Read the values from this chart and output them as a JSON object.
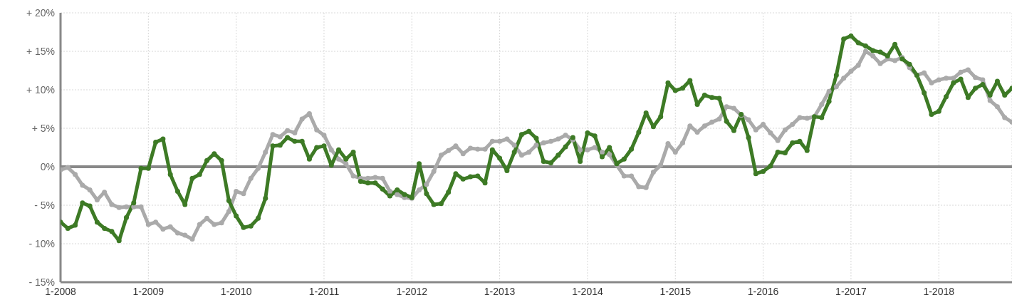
{
  "chart_data": {
    "type": "line",
    "x": [
      "2008-01",
      "2008-02",
      "2008-03",
      "2008-04",
      "2008-05",
      "2008-06",
      "2008-07",
      "2008-08",
      "2008-09",
      "2008-10",
      "2008-11",
      "2008-12",
      "2009-01",
      "2009-02",
      "2009-03",
      "2009-04",
      "2009-05",
      "2009-06",
      "2009-07",
      "2009-08",
      "2009-09",
      "2009-10",
      "2009-11",
      "2009-12",
      "2010-01",
      "2010-02",
      "2010-03",
      "2010-04",
      "2010-05",
      "2010-06",
      "2010-07",
      "2010-08",
      "2010-09",
      "2010-10",
      "2010-11",
      "2010-12",
      "2011-01",
      "2011-02",
      "2011-03",
      "2011-04",
      "2011-05",
      "2011-06",
      "2011-07",
      "2011-08",
      "2011-09",
      "2011-10",
      "2011-11",
      "2011-12",
      "2012-01",
      "2012-02",
      "2012-03",
      "2012-04",
      "2012-05",
      "2012-06",
      "2012-07",
      "2012-08",
      "2012-09",
      "2012-10",
      "2012-11",
      "2012-12",
      "2013-01",
      "2013-02",
      "2013-03",
      "2013-04",
      "2013-05",
      "2013-06",
      "2013-07",
      "2013-08",
      "2013-09",
      "2013-10",
      "2013-11",
      "2013-12",
      "2014-01",
      "2014-02",
      "2014-03",
      "2014-04",
      "2014-05",
      "2014-06",
      "2014-07",
      "2014-08",
      "2014-09",
      "2014-10",
      "2014-11",
      "2014-12",
      "2015-01",
      "2015-02",
      "2015-03",
      "2015-04",
      "2015-05",
      "2015-06",
      "2015-07",
      "2015-08",
      "2015-09",
      "2015-10",
      "2015-11",
      "2015-12",
      "2016-01",
      "2016-02",
      "2016-03",
      "2016-04",
      "2016-05",
      "2016-06",
      "2016-07",
      "2016-08",
      "2016-09",
      "2016-10",
      "2016-11",
      "2016-12",
      "2017-01",
      "2017-02",
      "2017-03",
      "2017-04",
      "2017-05",
      "2017-06",
      "2017-07",
      "2017-08",
      "2017-09",
      "2017-10",
      "2017-11",
      "2017-12",
      "2018-01",
      "2018-02",
      "2018-03",
      "2018-04",
      "2018-05",
      "2018-06",
      "2018-07",
      "2018-08",
      "2018-09",
      "2018-10",
      "2018-11"
    ],
    "series": [
      {
        "color": "#aaaaaa",
        "values": [
          -0.4,
          -0.1,
          -1.0,
          -2.4,
          -3.0,
          -4.3,
          -3.3,
          -4.9,
          -5.3,
          -5.2,
          -5.2,
          -5.2,
          -7.5,
          -7.2,
          -8.1,
          -7.8,
          -8.6,
          -8.9,
          -9.4,
          -7.5,
          -6.7,
          -7.5,
          -7.3,
          -5.8,
          -3.2,
          -3.5,
          -1.5,
          -0.2,
          1.9,
          4.2,
          3.9,
          4.7,
          4.4,
          6.2,
          6.9,
          4.8,
          4.1,
          2.2,
          1.0,
          0.4,
          -1.2,
          -1.5,
          -1.5,
          -1.4,
          -1.5,
          -3.2,
          -3.6,
          -4.0,
          -4.1,
          -3.0,
          -2.3,
          -0.6,
          1.5,
          2.1,
          2.7,
          1.7,
          2.4,
          2.3,
          2.3,
          3.3,
          3.3,
          3.6,
          2.8,
          1.5,
          1.9,
          2.8,
          3.1,
          3.3,
          3.6,
          4.1,
          3.5,
          2.2,
          2.2,
          2.5,
          1.9,
          1.6,
          0.2,
          -1.2,
          -1.2,
          -2.6,
          -2.7,
          -0.7,
          0.2,
          3.0,
          1.9,
          3.1,
          5.3,
          4.5,
          5.3,
          5.8,
          6.2,
          7.8,
          7.6,
          6.7,
          6.1,
          4.8,
          5.5,
          4.4,
          3.4,
          4.8,
          5.5,
          6.4,
          6.3,
          6.5,
          8.1,
          9.8,
          10.4,
          11.5,
          12.4,
          13.2,
          15.0,
          14.4,
          13.4,
          14.0,
          13.8,
          14.2,
          12.9,
          11.9,
          12.2,
          10.9,
          11.3,
          11.5,
          11.5,
          12.3,
          12.6,
          11.6,
          11.3,
          8.6,
          7.8,
          6.4,
          5.8
        ]
      },
      {
        "color": "#3d7a25",
        "values": [
          -7.2,
          -8.0,
          -7.6,
          -4.7,
          -5.1,
          -7.2,
          -8.0,
          -8.4,
          -9.6,
          -6.6,
          -4.7,
          -0.2,
          -0.2,
          3.2,
          3.6,
          -1.0,
          -3.2,
          -4.9,
          -1.5,
          -1.0,
          0.8,
          1.7,
          0.8,
          -4.4,
          -6.4,
          -7.9,
          -7.7,
          -6.7,
          -4.1,
          2.7,
          2.8,
          3.8,
          3.3,
          3.3,
          1.0,
          2.5,
          2.7,
          0.2,
          2.2,
          1.0,
          1.9,
          -1.9,
          -2.1,
          -2.1,
          -2.9,
          -3.8,
          -3.0,
          -3.6,
          -4.0,
          0.4,
          -3.5,
          -4.9,
          -4.8,
          -3.3,
          -0.9,
          -1.6,
          -1.3,
          -1.2,
          -2.1,
          2.2,
          1.1,
          -0.5,
          1.9,
          4.2,
          4.6,
          3.7,
          0.7,
          0.5,
          1.5,
          2.6,
          3.8,
          0.7,
          4.4,
          4.0,
          1.3,
          2.5,
          0.4,
          1.0,
          2.3,
          4.5,
          7.0,
          5.2,
          6.5,
          10.9,
          9.9,
          10.2,
          11.2,
          8.1,
          9.3,
          9.0,
          8.9,
          5.9,
          4.7,
          6.8,
          3.8,
          -0.9,
          -0.6,
          0.1,
          1.9,
          1.8,
          3.1,
          3.3,
          2.1,
          6.5,
          6.4,
          8.5,
          11.9,
          16.6,
          17.0,
          16.1,
          15.7,
          15.1,
          14.9,
          14.4,
          15.9,
          14.0,
          13.3,
          11.9,
          9.6,
          6.8,
          7.2,
          9.1,
          10.9,
          11.4,
          9.0,
          10.2,
          10.7,
          9.3,
          11.1,
          9.3,
          10.2
        ]
      }
    ],
    "xlim": [
      "2008-01",
      "2018-11"
    ],
    "xticks": [
      {
        "value": "2008-01",
        "label": "1-2008"
      },
      {
        "value": "2009-01",
        "label": "1-2009"
      },
      {
        "value": "2010-01",
        "label": "1-2010"
      },
      {
        "value": "2011-01",
        "label": "1-2011"
      },
      {
        "value": "2012-01",
        "label": "1-2012"
      },
      {
        "value": "2013-01",
        "label": "1-2013"
      },
      {
        "value": "2014-01",
        "label": "1-2014"
      },
      {
        "value": "2015-01",
        "label": "1-2015"
      },
      {
        "value": "2016-01",
        "label": "1-2016"
      },
      {
        "value": "2017-01",
        "label": "1-2017"
      },
      {
        "value": "2018-01",
        "label": "1-2018"
      }
    ],
    "ylim": [
      -15,
      20
    ],
    "yticks": [
      {
        "value": -15,
        "label": "- 15%"
      },
      {
        "value": -10,
        "label": "- 10%"
      },
      {
        "value": -5,
        "label": "- 5%"
      },
      {
        "value": 0,
        "label": "0%"
      },
      {
        "value": 5,
        "label": "+ 5%"
      },
      {
        "value": 10,
        "label": "+ 10%"
      },
      {
        "value": 15,
        "label": "+ 15%"
      },
      {
        "value": 20,
        "label": "+ 20%"
      }
    ],
    "ref_lines": [
      {
        "axis": "y",
        "value": 0,
        "color": "#888888"
      }
    ],
    "grid": true,
    "marker": "circle",
    "line_style": "solid",
    "legend": false
  }
}
